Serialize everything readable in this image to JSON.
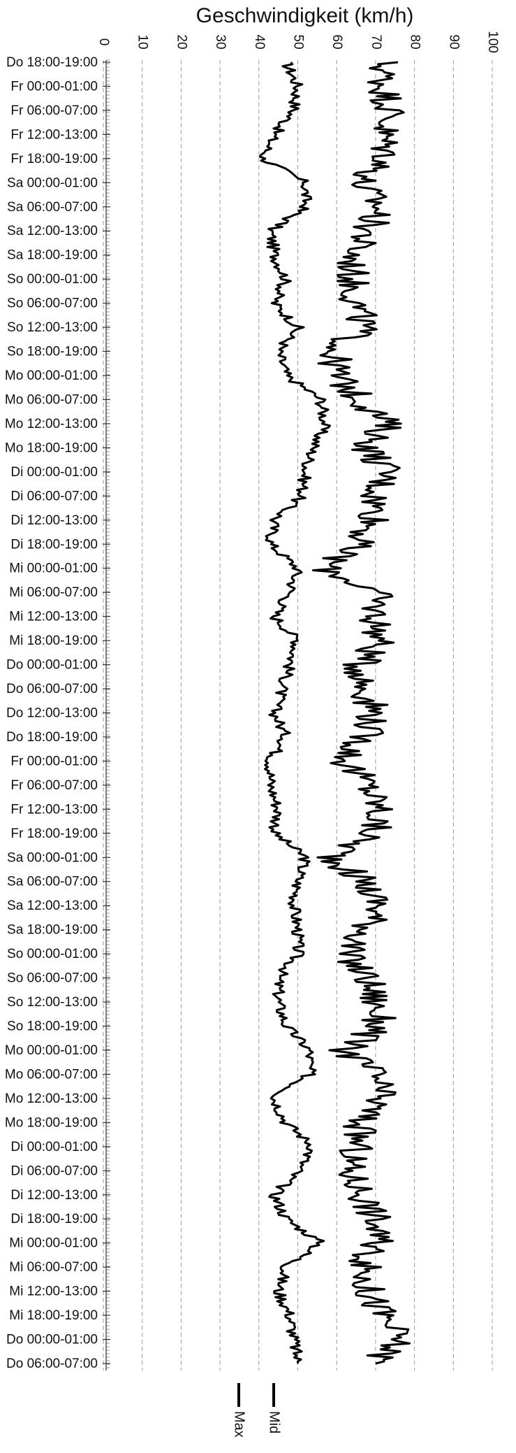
{
  "chart_data": {
    "type": "line",
    "orientation": "rotated-90",
    "title": "",
    "xlabel": "",
    "ylabel": "Geschwindigkeit (km/h)",
    "ylim": [
      0,
      100
    ],
    "yticks": [
      0,
      10,
      20,
      30,
      40,
      50,
      60,
      70,
      80,
      90,
      100
    ],
    "grid": true,
    "legend_position": "bottom",
    "categories": [
      "Do 18:00-19:00",
      "Fr 00:00-01:00",
      "Fr 06:00-07:00",
      "Fr 12:00-13:00",
      "Fr 18:00-19:00",
      "Sa 00:00-01:00",
      "Sa 06:00-07:00",
      "Sa 12:00-13:00",
      "Sa 18:00-19:00",
      "So 00:00-01:00",
      "So 06:00-07:00",
      "So 12:00-13:00",
      "So 18:00-19:00",
      "Mo 00:00-01:00",
      "Mo 06:00-07:00",
      "Mo 12:00-13:00",
      "Mo 18:00-19:00",
      "Di 00:00-01:00",
      "Di 06:00-07:00",
      "Di 12:00-13:00",
      "Di 18:00-19:00",
      "Mi 00:00-01:00",
      "Mi 06:00-07:00",
      "Mi 12:00-13:00",
      "Mi 18:00-19:00",
      "Do 00:00-01:00",
      "Do 06:00-07:00",
      "Do 12:00-13:00",
      "Do 18:00-19:00",
      "Fr 00:00-01:00",
      "Fr 06:00-07:00",
      "Fr 12:00-13:00",
      "Fr 18:00-19:00",
      "Sa 00:00-01:00",
      "Sa 06:00-07:00",
      "Sa 12:00-13:00",
      "Sa 18:00-19:00",
      "So 00:00-01:00",
      "So 06:00-07:00",
      "So 12:00-13:00",
      "So 18:00-19:00",
      "Mo 00:00-01:00",
      "Mo 06:00-07:00",
      "Mo 12:00-13:00",
      "Mo 18:00-19:00",
      "Di 00:00-01:00",
      "Di 06:00-07:00",
      "Di 12:00-13:00",
      "Di 18:00-19:00",
      "Mi 00:00-01:00",
      "Mi 06:00-07:00",
      "Mi 12:00-13:00",
      "Mi 18:00-19:00",
      "Do 00:00-01:00",
      "Do 06:00-07:00"
    ],
    "series": [
      {
        "name": "Mid",
        "color": "#000000",
        "values": [
          47,
          50,
          49,
          44,
          41,
          52,
          52,
          43,
          44,
          47,
          44,
          50,
          45,
          47,
          56,
          57,
          54,
          52,
          51,
          44,
          43,
          50,
          48,
          44,
          50,
          48,
          46,
          44,
          47,
          43,
          43,
          45,
          44,
          52,
          50,
          49,
          50,
          50,
          45,
          45,
          47,
          53,
          53,
          44,
          47,
          54,
          50,
          44,
          47,
          56,
          47,
          45,
          48,
          49,
          50
        ]
      },
      {
        "name": "Max",
        "color": "#000000",
        "values": [
          72,
          72,
          74,
          72,
          73,
          66,
          71,
          68,
          64,
          64,
          65,
          67,
          59,
          60,
          66,
          73,
          68,
          73,
          70,
          70,
          65,
          57,
          70,
          70,
          71,
          66,
          67,
          70,
          67,
          62,
          68,
          71,
          69,
          59,
          67,
          71,
          68,
          62,
          68,
          70,
          71,
          62,
          70,
          71,
          66,
          65,
          63,
          67,
          70,
          70,
          67,
          68,
          72,
          76,
          70
        ]
      }
    ]
  }
}
